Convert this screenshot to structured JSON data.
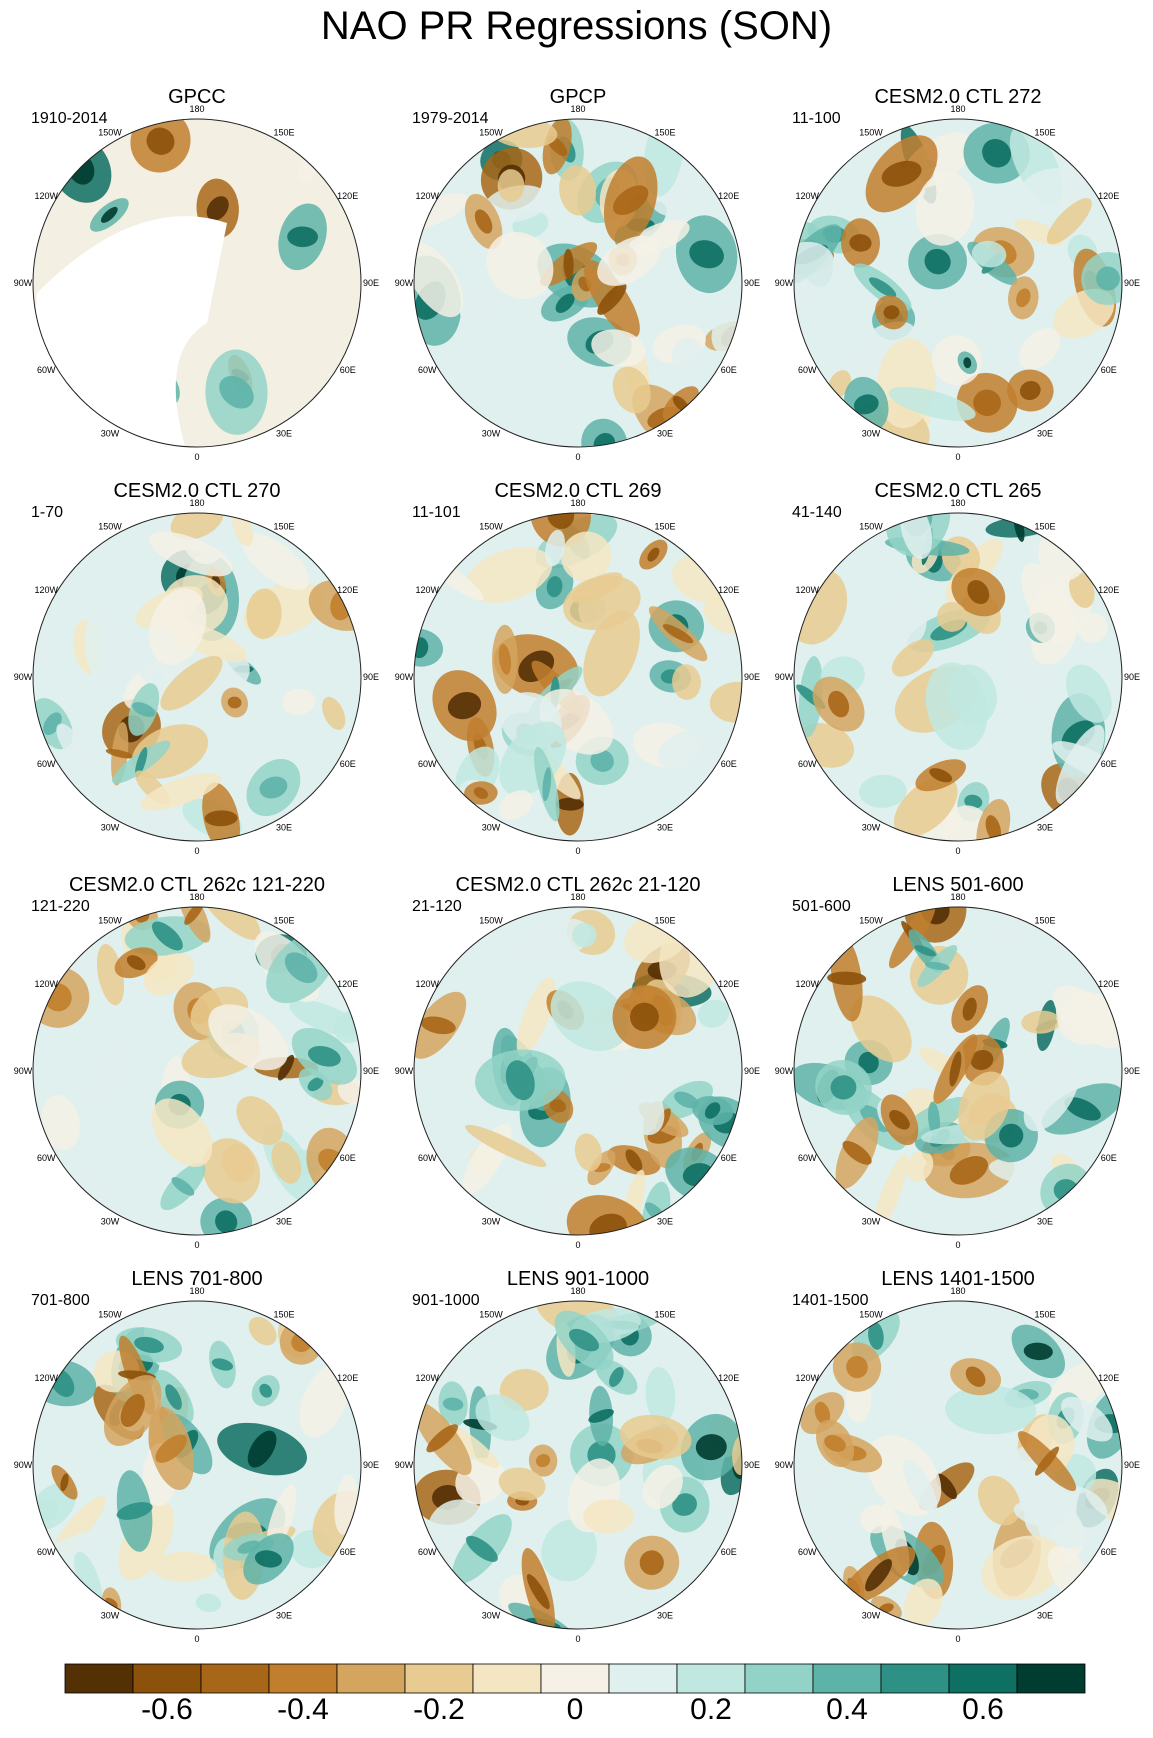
{
  "title": "NAO PR Regressions (SON)",
  "chart_data": {
    "type": "polar-stereographic map panels (filled contour regression maps)",
    "variable": "PR",
    "season": "SON",
    "projection": "north polar stereographic",
    "lon_labels": [
      "180",
      "150E",
      "120E",
      "90E",
      "60E",
      "30E",
      "0",
      "30W",
      "60W",
      "90W",
      "120W",
      "150W"
    ],
    "colorbar": {
      "levels": [
        -0.7,
        -0.6,
        -0.5,
        -0.4,
        -0.3,
        -0.2,
        -0.1,
        0,
        0.1,
        0.2,
        0.3,
        0.4,
        0.5,
        0.6,
        0.7
      ],
      "colors": [
        "#543005",
        "#8c510a",
        "#a86718",
        "#c17f2e",
        "#d4a55f",
        "#e8cb91",
        "#f5e6c3",
        "#f5f1e6",
        "#e0f0ee",
        "#c0e8e1",
        "#93d3c7",
        "#5eb3a8",
        "#2e9185",
        "#0e6f63",
        "#003c30"
      ],
      "tick_labels": [
        "-0.6",
        "-0.4",
        "-0.2",
        "0",
        "0.2",
        "0.4",
        "0.6"
      ]
    },
    "panels": [
      {
        "title": "GPCC",
        "period": "1910-2014"
      },
      {
        "title": "GPCP",
        "period": "1979-2014"
      },
      {
        "title": "CESM2.0 CTL 272",
        "period": "11-100"
      },
      {
        "title": "CESM2.0 CTL 270",
        "period": "1-70"
      },
      {
        "title": "CESM2.0 CTL 269",
        "period": "11-101"
      },
      {
        "title": "CESM2.0 CTL 265",
        "period": "41-140"
      },
      {
        "title": "CESM2.0 CTL 262c 121-220",
        "period": "121-220"
      },
      {
        "title": "CESM2.0 CTL 262c 21-120",
        "period": "21-120"
      },
      {
        "title": "LENS 501-600",
        "period": "501-600"
      },
      {
        "title": "LENS 701-800",
        "period": "701-800"
      },
      {
        "title": "LENS 901-1000",
        "period": "901-1000"
      },
      {
        "title": "LENS 1401-1500",
        "period": "1401-1500"
      }
    ]
  }
}
